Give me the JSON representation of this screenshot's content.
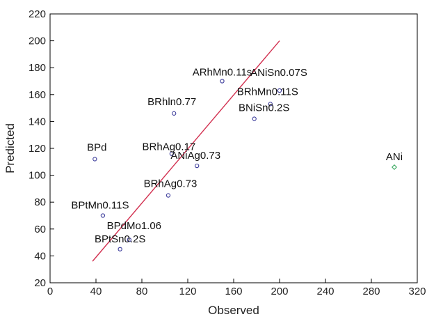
{
  "chart_data": {
    "type": "scatter",
    "title": "",
    "xlabel": "Observed",
    "ylabel": "Predicted",
    "xlim": [
      0,
      320
    ],
    "ylim": [
      20,
      220
    ],
    "xticks": [
      0,
      40,
      80,
      120,
      160,
      200,
      240,
      280,
      320
    ],
    "yticks": [
      20,
      40,
      60,
      80,
      100,
      120,
      140,
      160,
      180,
      200,
      220
    ],
    "grid": false,
    "legend": "none",
    "points": [
      {
        "label": "ARhMn0.11s",
        "x": 150,
        "y": 170,
        "marker": "circle",
        "color": "#3a3a9a"
      },
      {
        "label": "ANiSn0.07S",
        "x": 200,
        "y": 163,
        "marker": "circle",
        "color": "#3a3a9a"
      },
      {
        "label": "BRhMn0.11S",
        "x": 192,
        "y": 153,
        "marker": "circle",
        "color": "#3a3a9a"
      },
      {
        "label": "BRhln0.77",
        "x": 108,
        "y": 146,
        "marker": "circle",
        "color": "#3a3a9a"
      },
      {
        "label": "BNiSn0.2S",
        "x": 178,
        "y": 142,
        "marker": "circle",
        "color": "#3a3a9a"
      },
      {
        "label": "BPd",
        "x": 39,
        "y": 112,
        "marker": "circle",
        "color": "#3a3a9a"
      },
      {
        "label": "BRhAg0.17",
        "x": 106,
        "y": 116,
        "marker": "circle",
        "color": "#3a3a9a"
      },
      {
        "label": "ANiAg0.73",
        "x": 128,
        "y": 107,
        "marker": "circle",
        "color": "#3a3a9a"
      },
      {
        "label": "ANi",
        "x": 300,
        "y": 106,
        "marker": "diamond",
        "color": "#3aa860"
      },
      {
        "label": "BRhAg0.73",
        "x": 103,
        "y": 85,
        "marker": "circle",
        "color": "#3a3a9a"
      },
      {
        "label": "BPtMn0.11S",
        "x": 46,
        "y": 70,
        "marker": "circle",
        "color": "#3a3a9a"
      },
      {
        "label": "BPdMo1.06",
        "x": 69,
        "y": 52,
        "marker": "circle",
        "color": "#3a3a9a"
      },
      {
        "label": "BPtSn0.2S",
        "x": 61,
        "y": 45,
        "marker": "circle",
        "color": "#3a3a9a"
      }
    ],
    "fit_line": {
      "x": [
        37,
        200
      ],
      "y": [
        36,
        200
      ],
      "color": "#d23050"
    }
  }
}
